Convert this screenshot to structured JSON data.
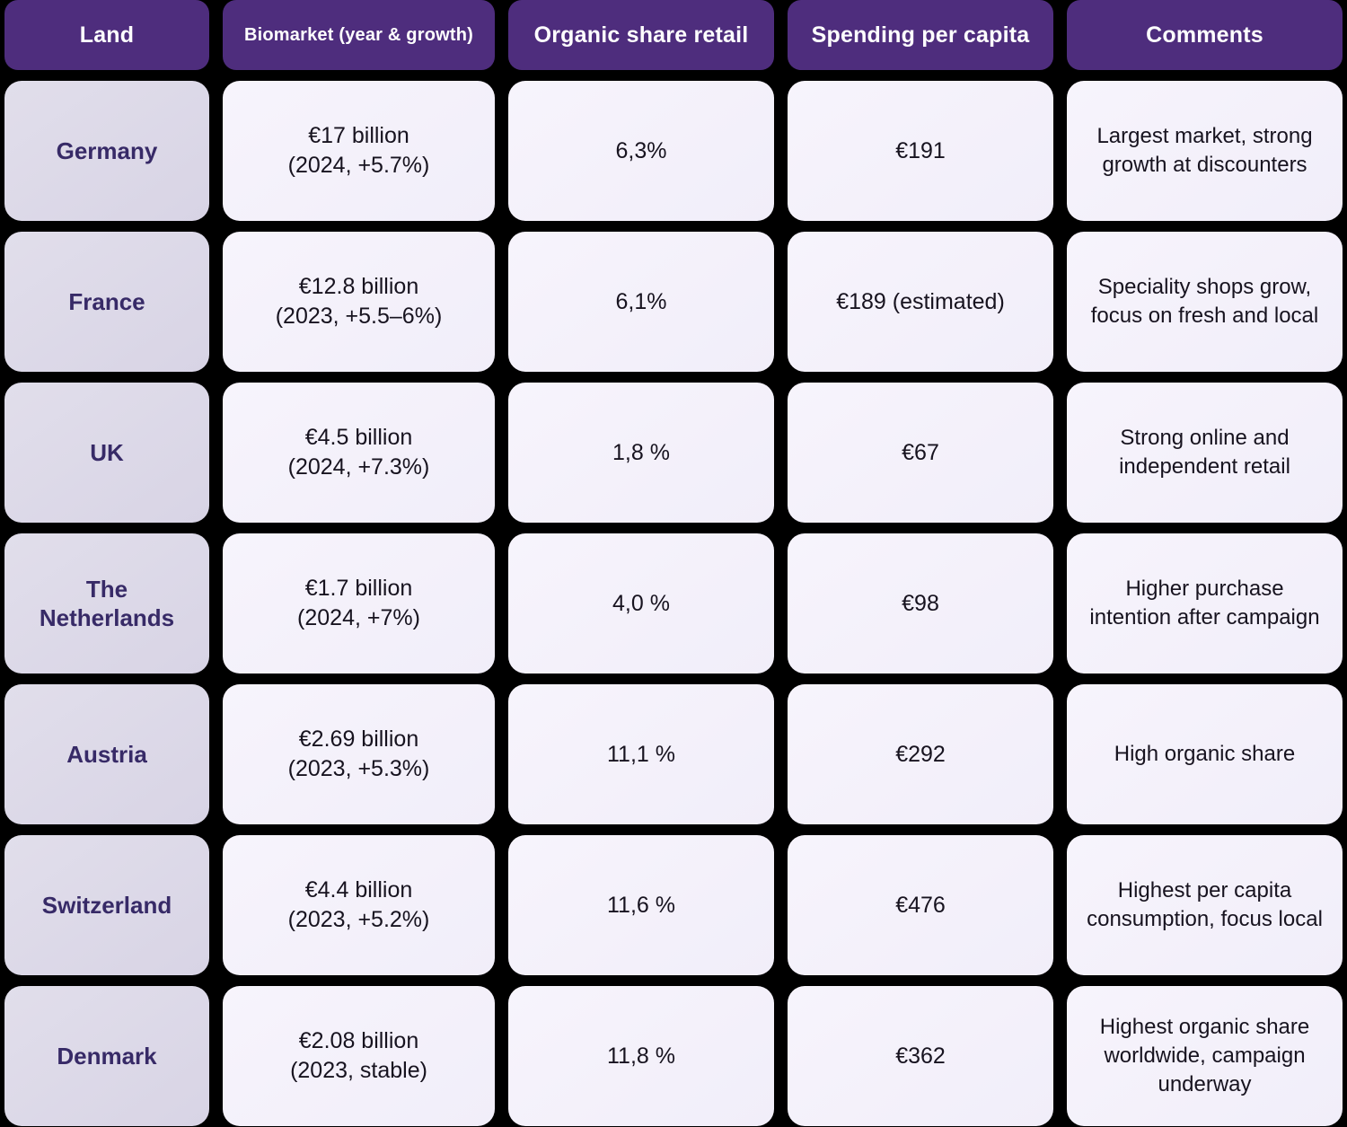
{
  "colors": {
    "header-bg": "#4e2d7d",
    "header-text": "#ffffff",
    "cell-bg": "#f1eef9",
    "cell-bg-light": "#f7f4fc",
    "land-bg": "#d8d4e5",
    "land-bg-light": "#e1deeb",
    "land-text": "#372a67",
    "body-text": "#17131f",
    "page-bg": "#000000"
  },
  "table": {
    "columns": [
      {
        "id": "land",
        "label": "Land"
      },
      {
        "id": "biomarket",
        "label": "Biomarket (year & growth)"
      },
      {
        "id": "organic_share",
        "label": "Organic share retail"
      },
      {
        "id": "spending",
        "label": "Spending per capita"
      },
      {
        "id": "comments",
        "label": "Comments"
      }
    ],
    "rows": [
      {
        "land": "Germany",
        "biomarket_value": "€17 billion",
        "biomarket_detail": "(2024, +5.7%)",
        "organic_share": "6,3%",
        "spending": "€191",
        "comments": "Largest market, strong growth at discounters"
      },
      {
        "land": "France",
        "biomarket_value": "€12.8 billion",
        "biomarket_detail": "(2023, +5.5–6%)",
        "organic_share": "6,1%",
        "spending": "€189 (estimated)",
        "comments": "Speciality shops grow, focus on fresh and local"
      },
      {
        "land": "UK",
        "biomarket_value": "€4.5 billion",
        "biomarket_detail": "(2024, +7.3%)",
        "organic_share": "1,8 %",
        "spending": "€67",
        "comments": "Strong online and independent retail"
      },
      {
        "land": "The Netherlands",
        "biomarket_value": "€1.7 billion",
        "biomarket_detail": "(2024, +7%)",
        "organic_share": "4,0 %",
        "spending": "€98",
        "comments": "Higher purchase intention after campaign"
      },
      {
        "land": "Austria",
        "biomarket_value": "€2.69 billion",
        "biomarket_detail": "(2023, +5.3%)",
        "organic_share": "11,1 %",
        "spending": "€292",
        "comments": "High organic share"
      },
      {
        "land": "Switzerland",
        "biomarket_value": "€4.4 billion",
        "biomarket_detail": "(2023, +5.2%)",
        "organic_share": "11,6 %",
        "spending": "€476",
        "comments": "Highest per capita consumption, focus local"
      },
      {
        "land": "Denmark",
        "biomarket_value": "€2.08 billion",
        "biomarket_detail": "(2023, stable)",
        "organic_share": "11,8 %",
        "spending": "€362",
        "comments": "Highest organic share worldwide, campaign underway"
      }
    ]
  }
}
